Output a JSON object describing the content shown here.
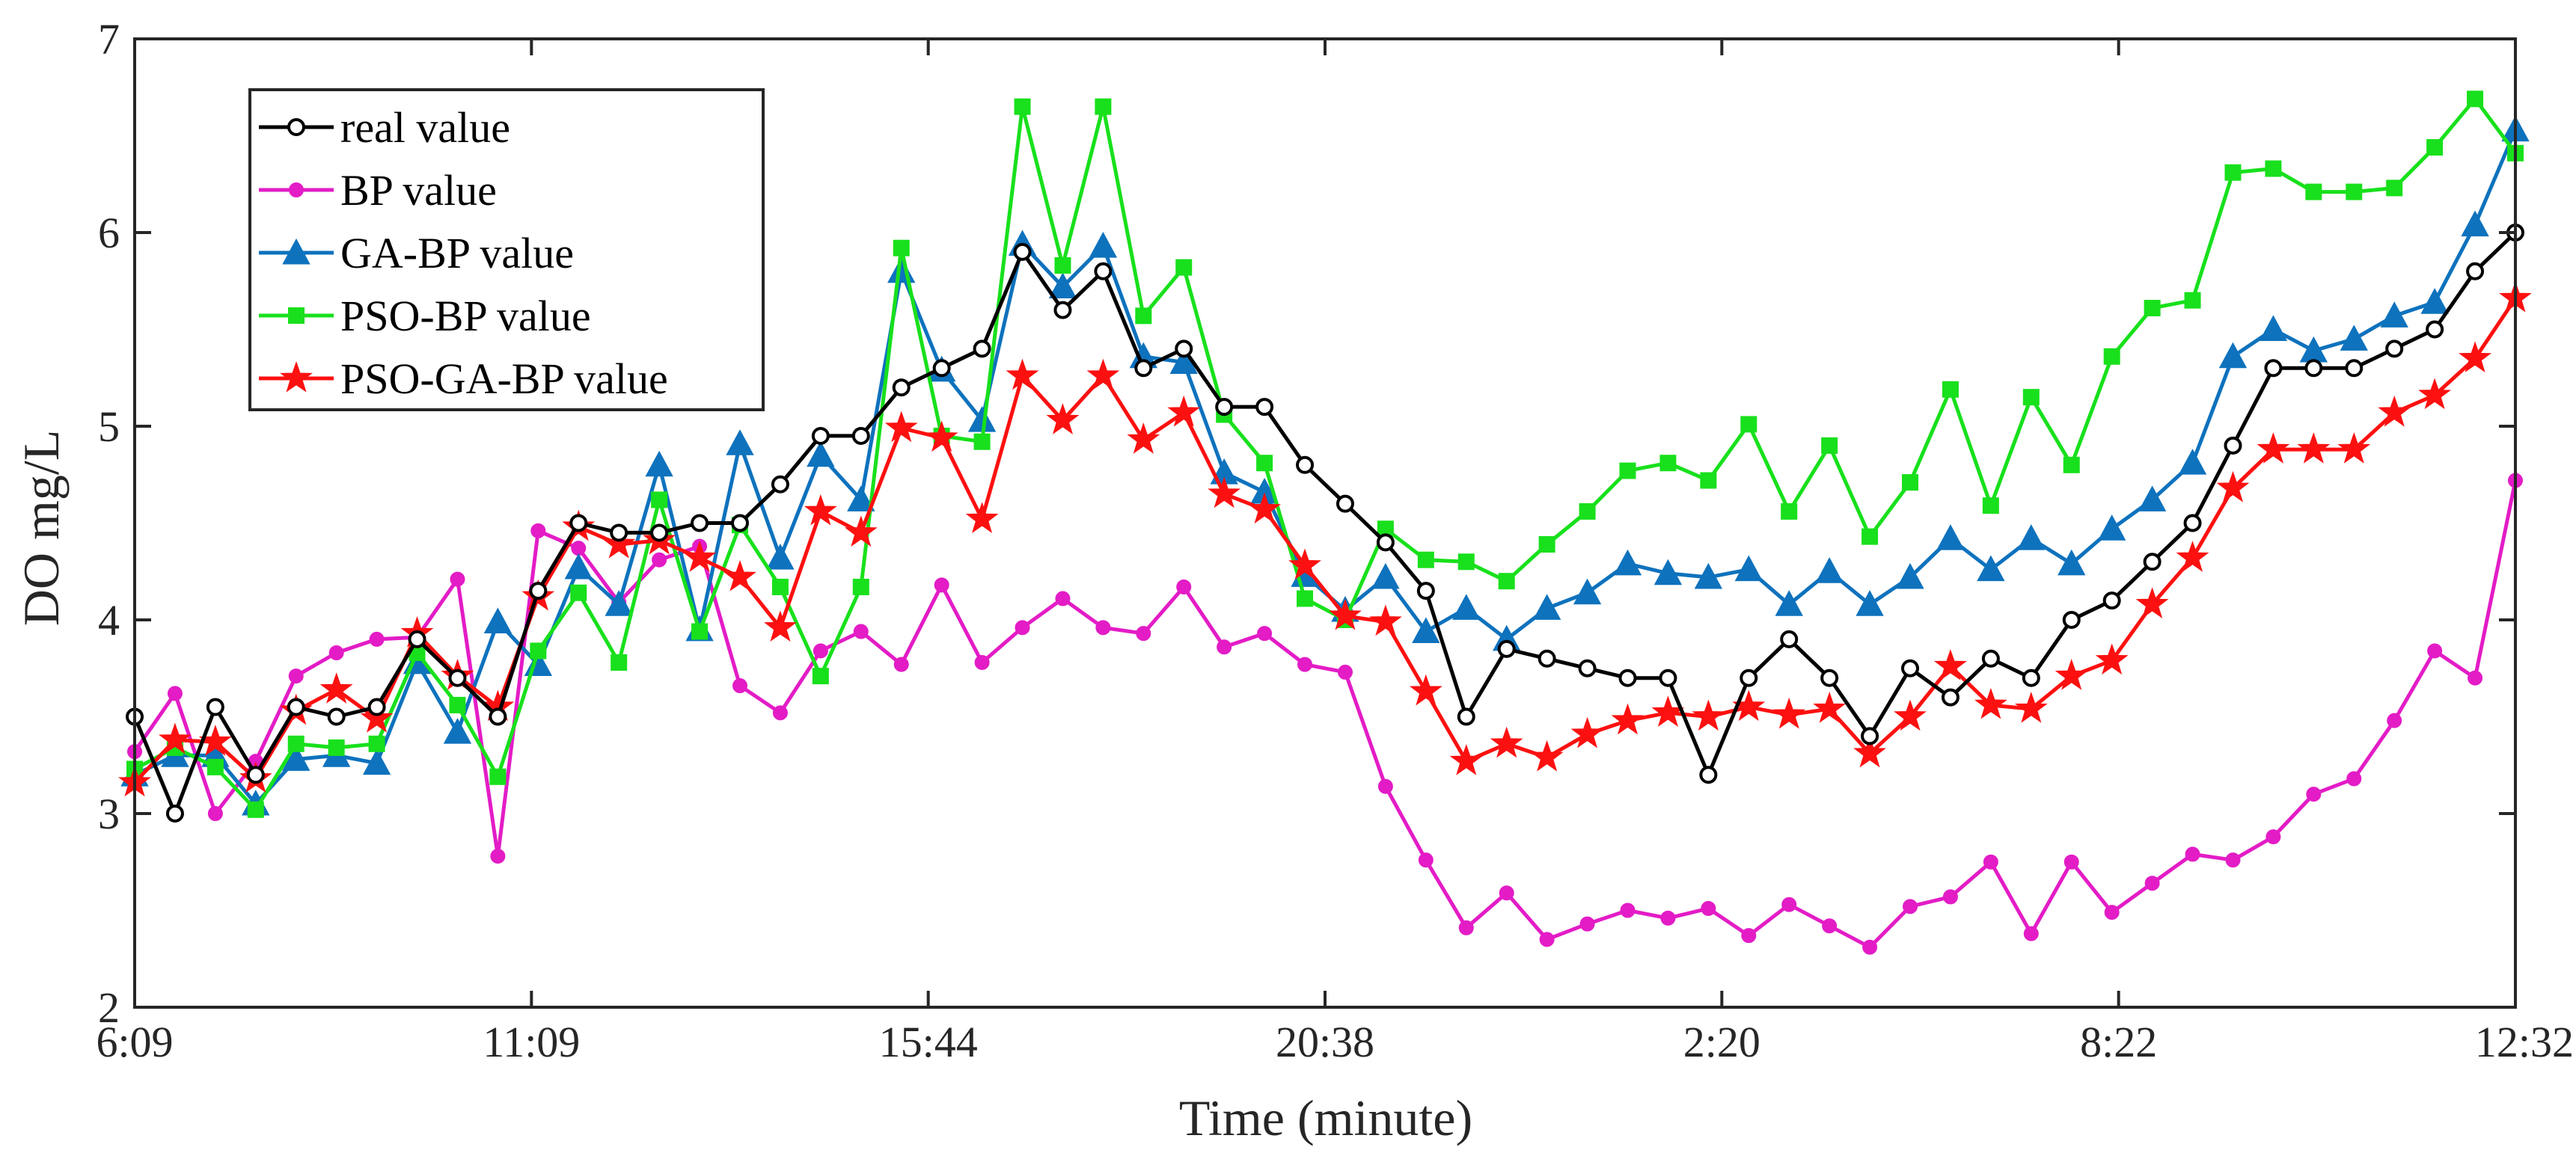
{
  "chart_data": {
    "type": "line",
    "title": "",
    "xlabel": "Time (minute)",
    "ylabel": "DO mg/L",
    "ylim": [
      2,
      7
    ],
    "xlim": [
      0,
      60
    ],
    "yticks": [
      2,
      3,
      4,
      5,
      6,
      7
    ],
    "xticks": [
      {
        "pos": 0,
        "label": "6:09"
      },
      {
        "pos": 10,
        "label": "11:09"
      },
      {
        "pos": 20,
        "label": "15:44"
      },
      {
        "pos": 30,
        "label": "20:38"
      },
      {
        "pos": 40,
        "label": "2:20"
      },
      {
        "pos": 50,
        "label": "8:22"
      },
      {
        "pos": 60,
        "label": "12:32"
      }
    ],
    "grid": false,
    "legend_position": "top-left",
    "series": [
      {
        "name": "real value",
        "color": "#000000",
        "marker": "circle-open",
        "values": [
          3.5,
          3.0,
          3.55,
          3.2,
          3.55,
          3.5,
          3.55,
          3.9,
          3.7,
          3.5,
          4.15,
          4.5,
          4.45,
          4.45,
          4.5,
          4.5,
          4.7,
          4.95,
          4.95,
          5.2,
          5.3,
          5.4,
          5.9,
          5.6,
          5.8,
          5.3,
          5.4,
          5.1,
          5.1,
          4.8,
          4.6,
          4.4,
          4.15,
          3.5,
          3.85,
          3.8,
          3.75,
          3.7,
          3.7,
          3.2,
          3.7,
          3.9,
          3.7,
          3.4,
          3.75,
          3.6,
          3.8,
          3.7,
          4.0,
          4.1,
          4.3,
          4.5,
          4.9,
          5.3,
          5.3,
          5.3,
          5.4,
          5.5,
          5.8,
          6.0
        ]
      },
      {
        "name": "BP value",
        "color": "#e31cc6",
        "marker": "circle-filled",
        "values": [
          3.32,
          3.62,
          3.0,
          3.27,
          3.71,
          3.83,
          3.9,
          3.91,
          4.21,
          2.78,
          4.46,
          4.37,
          4.09,
          4.31,
          4.38,
          3.66,
          3.52,
          3.84,
          3.94,
          3.77,
          4.18,
          3.78,
          3.96,
          4.11,
          3.96,
          3.93,
          4.17,
          3.86,
          3.93,
          3.77,
          3.73,
          3.14,
          2.76,
          2.41,
          2.59,
          2.35,
          2.43,
          2.5,
          2.46,
          2.51,
          2.37,
          2.53,
          2.42,
          2.31,
          2.52,
          2.57,
          2.75,
          2.38,
          2.75,
          2.49,
          2.64,
          2.79,
          2.76,
          2.88,
          3.1,
          3.18,
          3.48,
          3.84,
          3.7,
          4.72
        ]
      },
      {
        "name": "GA-BP value",
        "color": "#0e72bd",
        "marker": "triangle",
        "values": [
          3.2,
          3.3,
          3.3,
          3.05,
          3.28,
          3.3,
          3.26,
          3.78,
          3.42,
          3.99,
          3.77,
          4.27,
          4.08,
          4.8,
          3.95,
          4.91,
          4.32,
          4.85,
          4.62,
          5.8,
          5.29,
          5.03,
          5.94,
          5.72,
          5.93,
          5.36,
          5.33,
          4.76,
          4.66,
          4.23,
          4.05,
          4.22,
          3.94,
          4.06,
          3.9,
          4.06,
          4.14,
          4.29,
          4.24,
          4.22,
          4.26,
          4.08,
          4.25,
          4.08,
          4.22,
          4.42,
          4.26,
          4.42,
          4.29,
          4.47,
          4.62,
          4.81,
          5.36,
          5.5,
          5.39,
          5.45,
          5.57,
          5.64,
          6.04,
          6.53
        ]
      },
      {
        "name": "PSO-BP value",
        "color": "#18e01c",
        "marker": "square",
        "values": [
          3.23,
          3.34,
          3.24,
          3.02,
          3.36,
          3.34,
          3.36,
          3.83,
          3.56,
          3.19,
          3.84,
          4.14,
          3.78,
          4.62,
          3.94,
          4.49,
          4.17,
          3.71,
          4.17,
          5.92,
          4.95,
          4.92,
          6.65,
          5.83,
          6.65,
          5.57,
          5.82,
          5.06,
          4.81,
          4.11,
          4.0,
          4.47,
          4.31,
          4.3,
          4.2,
          4.39,
          4.56,
          4.77,
          4.81,
          4.72,
          5.01,
          4.56,
          4.9,
          4.43,
          4.71,
          5.19,
          4.59,
          5.15,
          4.8,
          5.36,
          5.61,
          5.65,
          6.31,
          6.33,
          6.21,
          6.21,
          6.23,
          6.44,
          6.69,
          6.41
        ]
      },
      {
        "name": "PSO-GA-BP value",
        "color": "#fc1010",
        "marker": "star",
        "values": [
          3.16,
          3.38,
          3.37,
          3.18,
          3.53,
          3.64,
          3.49,
          3.93,
          3.71,
          3.55,
          4.12,
          4.48,
          4.39,
          4.41,
          4.32,
          4.22,
          3.96,
          4.56,
          4.45,
          4.99,
          4.94,
          4.52,
          5.26,
          5.03,
          5.26,
          4.93,
          5.07,
          4.65,
          4.57,
          4.28,
          4.02,
          3.99,
          3.63,
          3.27,
          3.36,
          3.29,
          3.41,
          3.48,
          3.52,
          3.5,
          3.55,
          3.51,
          3.54,
          3.31,
          3.5,
          3.76,
          3.56,
          3.54,
          3.71,
          3.79,
          4.08,
          4.32,
          4.68,
          4.88,
          4.88,
          4.88,
          5.07,
          5.16,
          5.35,
          5.66
        ]
      }
    ]
  }
}
